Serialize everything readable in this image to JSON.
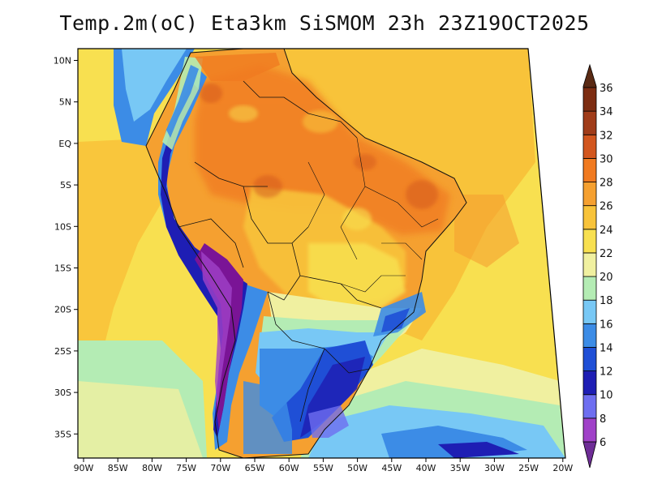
{
  "title": "Temp.2m(oC) Eta3km SiSMOM 23h 23Z19OCT2025",
  "x_axis_labels": [
    "90W",
    "85W",
    "80W",
    "75W",
    "70W",
    "65W",
    "60W",
    "55W",
    "50W",
    "45W",
    "40W",
    "35W",
    "30W",
    "25W",
    "20W"
  ],
  "y_axis_labels": [
    "10N",
    "5N",
    "EQ",
    "5S",
    "10S",
    "15S",
    "20S",
    "25S",
    "30S",
    "35S"
  ],
  "colorbar": {
    "labels": [
      "6",
      "8",
      "10",
      "12",
      "14",
      "16",
      "18",
      "20",
      "22",
      "24",
      "26",
      "28",
      "30",
      "32",
      "34",
      "36"
    ],
    "colors": [
      "#7a1496",
      "#a041c8",
      "#6e6ef0",
      "#1e1eb4",
      "#1f4fd6",
      "#3c8ce6",
      "#78c8f5",
      "#b4ecb4",
      "#f0f0a0",
      "#f8e050",
      "#f8c33a",
      "#f5a030",
      "#f07a20",
      "#d2561e",
      "#a03c19",
      "#7d2d12"
    ],
    "under_color": "#6e2d96",
    "over_color": "#5a2a14"
  },
  "map": {
    "lon_range": [
      -91,
      -19
    ],
    "lat_range": [
      -38.5,
      11.5
    ],
    "background_color": "#f8e050"
  }
}
